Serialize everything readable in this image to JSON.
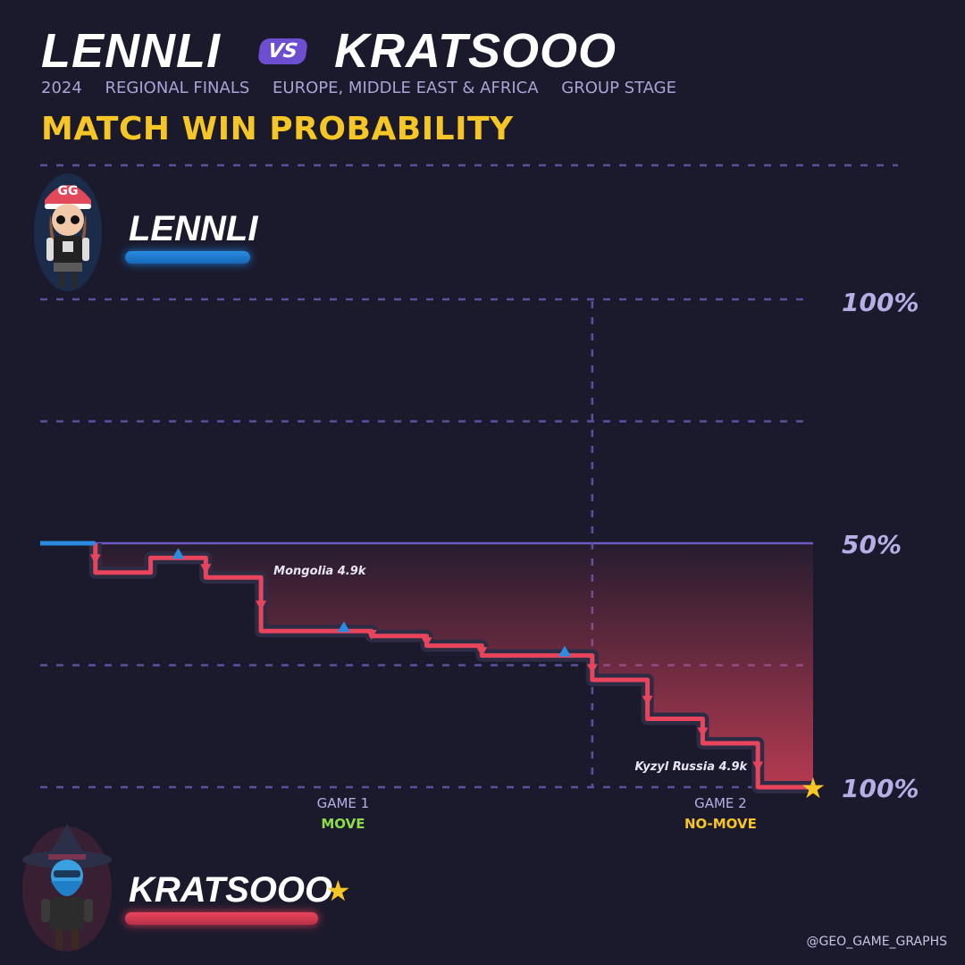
{
  "header": {
    "player1": "LENNLI",
    "vs": "VS",
    "player2": "KRATSOOO",
    "subtitle": [
      "2024",
      "REGIONAL FINALS",
      "EUROPE, MIDDLE EAST & AFRICA",
      "GROUP STAGE"
    ],
    "chart_title": "MATCH WIN PROBABILITY"
  },
  "players": {
    "top": {
      "name": "LENNLI",
      "color": "#2a8be0"
    },
    "bottom": {
      "name": "KRATSOOO",
      "color": "#e8455d",
      "winner_mark": "★"
    }
  },
  "credit": "@GEO_GAME_GRAPHS",
  "colors": {
    "background": "#1b1a2c",
    "accent": "#f5c625",
    "grid": "#5b4fa0",
    "line_bottom": "#e8455d",
    "line_top": "#2a8be0"
  },
  "chart_data": {
    "type": "line",
    "step": true,
    "y_tick_labels": [
      "100%",
      "50%",
      "100%"
    ],
    "ylim": [
      0,
      100
    ],
    "y_meaning": "KRATSOOO match win probability (%)",
    "x_unit": "round",
    "xlim": [
      0,
      14
    ],
    "game_boundary_x": 10,
    "games": [
      {
        "label": "GAME 1",
        "mode": "MOVE",
        "mode_color": "#8fdc4a"
      },
      {
        "label": "GAME 2",
        "mode": "NO-MOVE",
        "mode_color": "#f5c625"
      }
    ],
    "x": [
      0,
      1,
      2,
      3,
      4,
      5,
      6,
      7,
      8,
      9,
      10,
      11,
      12,
      13,
      14
    ],
    "values": [
      50,
      56,
      53,
      57,
      68,
      68,
      69,
      71,
      73,
      73,
      78,
      86,
      91,
      100,
      100
    ],
    "round_winner_markers": [
      {
        "x": 1,
        "winner": "KRATSOOO"
      },
      {
        "x": 2,
        "winner": "LENNLI"
      },
      {
        "x": 3,
        "winner": "KRATSOOO"
      },
      {
        "x": 4,
        "winner": "KRATSOOO"
      },
      {
        "x": 5,
        "winner": "LENNLI"
      },
      {
        "x": 6,
        "winner": "KRATSOOO"
      },
      {
        "x": 7,
        "winner": "KRATSOOO"
      },
      {
        "x": 8,
        "winner": "KRATSOOO"
      },
      {
        "x": 9,
        "winner": "LENNLI"
      },
      {
        "x": 10,
        "winner": "KRATSOOO"
      },
      {
        "x": 11,
        "winner": "KRATSOOO"
      },
      {
        "x": 12,
        "winner": "KRATSOOO"
      },
      {
        "x": 13,
        "winner": "KRATSOOO"
      }
    ],
    "annotations": [
      {
        "text": "Mongolia 4.9k",
        "x": 4
      },
      {
        "text": "Kyzyl Russia 4.9k",
        "x": 13
      }
    ],
    "end_marker": "★"
  }
}
